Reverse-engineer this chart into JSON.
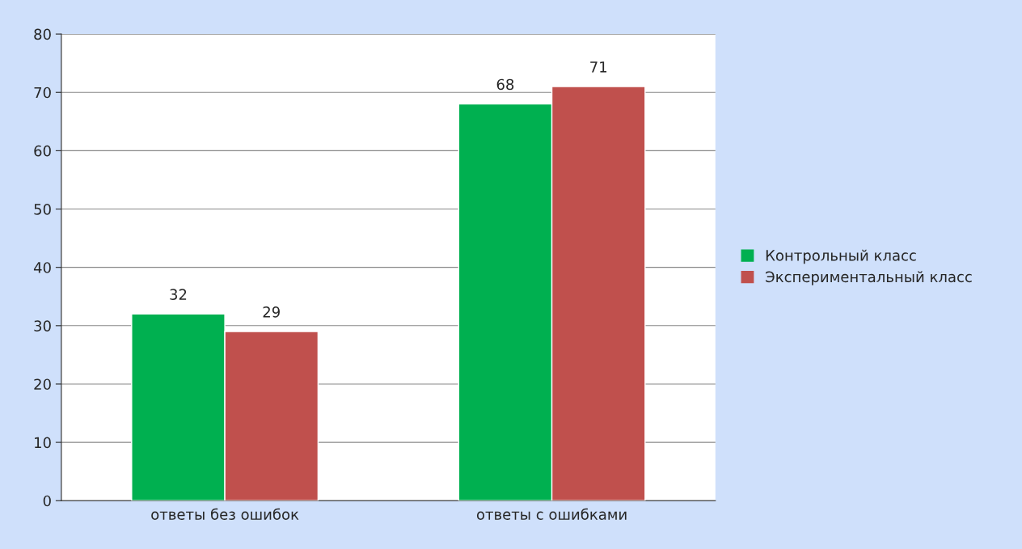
{
  "chart_data": {
    "type": "bar",
    "categories": [
      "ответы без ошибок",
      "ответы с ошибками"
    ],
    "series": [
      {
        "name": "Контрольный класс",
        "color": "#00b050",
        "values": [
          32,
          68
        ]
      },
      {
        "name": "Экспериментальный класс",
        "color": "#c0504d",
        "values": [
          29,
          71
        ]
      }
    ],
    "ylim": [
      0,
      80
    ],
    "yticks": [
      0,
      10,
      20,
      30,
      40,
      50,
      60,
      70,
      80
    ],
    "grid": "y",
    "legend": "right",
    "data_labels": true
  }
}
